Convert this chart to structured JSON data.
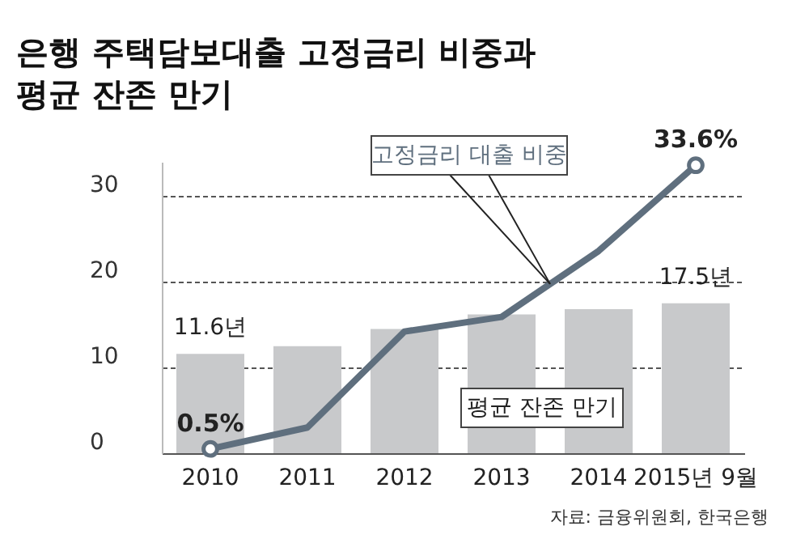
{
  "chart_data": {
    "type": "bar",
    "title": [
      "은행 주택담보대출 고정금리 비중과",
      "평균 잔존 만기"
    ],
    "categories": [
      "2010",
      "2011",
      "2012",
      "2013",
      "2014",
      "2015년 9월"
    ],
    "series": [
      {
        "name": "평균 잔존 만기",
        "color": "#c8c9cb",
        "values": [
          11.6,
          12.5,
          14.5,
          16.2,
          16.8,
          17.5
        ],
        "value_labels": [
          "11.6년",
          null,
          null,
          null,
          null,
          "17.5년"
        ]
      },
      {
        "name": "고정금리 대출 비중",
        "type": "line",
        "color": "#5f6f7e",
        "values": [
          0.5,
          3.0,
          14.2,
          15.9,
          23.6,
          33.6
        ],
        "value_labels": [
          "0.5%",
          null,
          null,
          null,
          null,
          "33.6%"
        ]
      }
    ],
    "ylim": [
      0,
      34
    ],
    "yticks": [
      0,
      10,
      20,
      30
    ],
    "grid": "y",
    "legend": false,
    "annotations": [
      "자료: 금융위원회, 한국은행"
    ]
  }
}
